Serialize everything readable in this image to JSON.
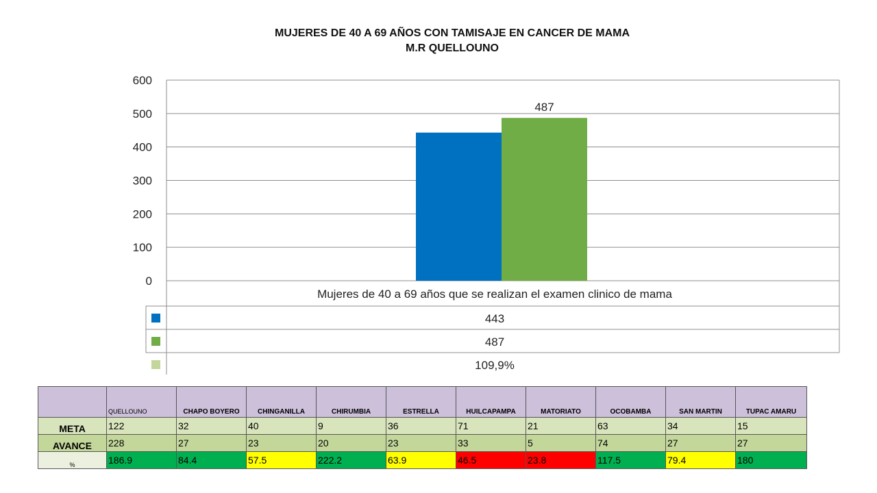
{
  "chart_data": {
    "type": "bar",
    "title": "MUJERES DE 40 A 69 AÑOS CON TAMISAJE EN CANCER DE MAMA",
    "subtitle": "M.R QUELLOUNO",
    "categories": [
      "Mujeres de 40 a 69 años que se realizan el examen clinico de mama"
    ],
    "series": [
      {
        "values": [
          443
        ],
        "color": "#0070c0"
      },
      {
        "values": [
          487
        ],
        "color": "#70ad47"
      },
      {
        "values": [
          "109,9%"
        ],
        "color": "#c3d69b"
      }
    ],
    "yticks": [
      "0",
      "100",
      "200",
      "300",
      "400",
      "500",
      "600"
    ],
    "ylim": [
      0,
      600
    ],
    "data_label": "487",
    "data_table_values": [
      "443",
      "487",
      "109,9%"
    ],
    "grid": true
  },
  "table": {
    "headers": [
      "",
      "QUELLOUNO",
      "CHAPO BOYERO",
      "CHINGANILLA",
      "CHIRUMBIA",
      "ESTRELLA",
      "HUILCAPAMPA",
      "MATORIATO",
      "OCOBAMBA",
      "SAN MARTIN",
      "TUPAC AMARU"
    ],
    "rows": [
      {
        "label": "META",
        "values": [
          "122",
          "32",
          "40",
          "9",
          "36",
          "71",
          "21",
          "63",
          "34",
          "15"
        ]
      },
      {
        "label": "AVANCE",
        "values": [
          "228",
          "27",
          "23",
          "20",
          "23",
          "33",
          "5",
          "74",
          "27",
          "27"
        ]
      },
      {
        "label": "%",
        "values": [
          "186.9",
          "84.4",
          "57.5",
          "222.2",
          "63.9",
          "46.5",
          "23.8",
          "117.5",
          "79.4",
          "180"
        ],
        "colors": [
          "#00b050",
          "#00b050",
          "#ffff00",
          "#00b050",
          "#ffff00",
          "#ff0000",
          "#ff0000",
          "#00b050",
          "#ffff00",
          "#00b050"
        ]
      }
    ]
  }
}
